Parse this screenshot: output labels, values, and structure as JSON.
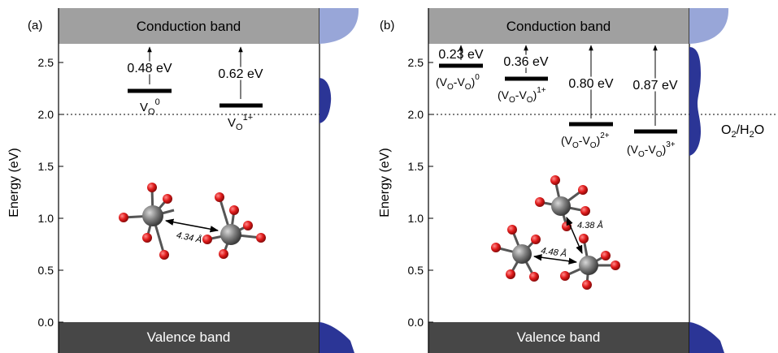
{
  "panel_a": {
    "label": "(a)",
    "conduction_band": "Conduction band",
    "valence_band": "Valence band",
    "ylabel": "Energy (eV)",
    "ticks": [
      "0.0",
      "0.5",
      "1.0",
      "1.5",
      "2.0",
      "2.5"
    ],
    "levels": [
      {
        "name": "V",
        "sub": "O",
        "sup": "0",
        "energy": 2.22,
        "gap_label": "0.48 eV"
      },
      {
        "name": "V",
        "sub": "O",
        "sup": "1+",
        "energy": 2.08,
        "gap_label": "0.62 eV"
      }
    ],
    "distance_label": "4.34 Å"
  },
  "panel_b": {
    "label": "(b)",
    "conduction_band": "Conduction band",
    "valence_band": "Valence band",
    "ylabel": "Energy (eV)",
    "ticks": [
      "0.0",
      "0.5",
      "1.0",
      "1.5",
      "2.0",
      "2.5"
    ],
    "levels": [
      {
        "label": "(V",
        "sup": "0",
        "energy": 2.47,
        "gap_label": "0.23 eV"
      },
      {
        "label": "(V",
        "sup": "1+",
        "energy": 2.34,
        "gap_label": "0.36 eV"
      },
      {
        "label": "(V",
        "sup": "2+",
        "energy": 1.9,
        "gap_label": "0.80 eV"
      },
      {
        "label": "(V",
        "sup": "3+",
        "energy": 1.83,
        "gap_label": "0.87 eV"
      }
    ],
    "distance_labels": [
      "4.38 Å",
      "4.48 Å"
    ],
    "redox_label": "O",
    "redox_label_full": "O2/H2O"
  },
  "colors": {
    "conduction_band": "#a0a0a0",
    "valence_band": "#474747",
    "dos_light": "#98a6d8",
    "dos_dark": "#2b3596",
    "metal_atom": "#7d7d7d",
    "oxygen_atom": "#e01b1b"
  }
}
